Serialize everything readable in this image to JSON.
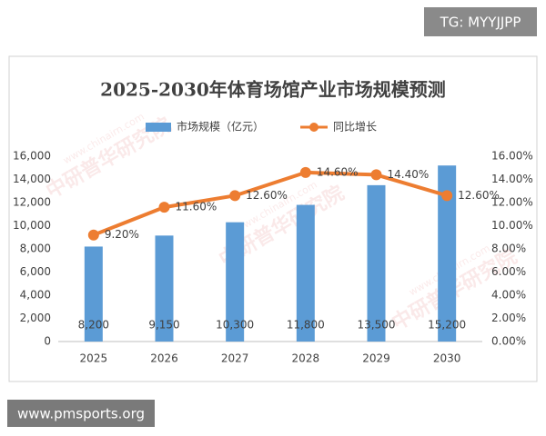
{
  "chart_data": {
    "type": "bar",
    "title": "2025-2030年体育场馆产业市场规模预测",
    "categories": [
      "2025",
      "2026",
      "2027",
      "2028",
      "2029",
      "2030"
    ],
    "series": [
      {
        "name": "市场规模（亿元）",
        "type": "bar",
        "color": "#5b9bd5",
        "values": [
          8200,
          9150,
          10300,
          11800,
          13500,
          15200
        ],
        "value_labels": [
          "8,200",
          "9,150",
          "10,300",
          "11,800",
          "13,500",
          "15,200"
        ]
      },
      {
        "name": "同比增长",
        "type": "line",
        "axis": "y2",
        "color": "#ed7d31",
        "values": [
          9.2,
          11.6,
          12.6,
          14.6,
          14.4,
          12.6
        ],
        "value_labels": [
          "9.20%",
          "11.60%",
          "12.60%",
          "14.60%",
          "14.40%",
          "12.60%"
        ]
      }
    ],
    "ylim": [
      0,
      16000
    ],
    "yticks": [
      0,
      {
        "value": 2000,
        "label": "2,000"
      },
      {
        "value": 4000,
        "label": "4,000"
      },
      {
        "value": 6000,
        "label": "6,000"
      },
      {
        "value": 8000,
        "label": "8,000"
      },
      {
        "value": 10000,
        "label": "10,000"
      },
      {
        "value": 12000,
        "label": "12,000"
      },
      {
        "value": 14000,
        "label": "14,000"
      },
      {
        "value": 16000,
        "label": "16,000"
      }
    ],
    "y2lim": [
      0,
      16
    ],
    "y2ticks": [
      {
        "value": 0,
        "label": "0.00%"
      },
      {
        "value": 2,
        "label": "2.00%"
      },
      {
        "value": 4,
        "label": "4.00%"
      },
      {
        "value": 6,
        "label": "6.00%"
      },
      {
        "value": 8,
        "label": "8.00%"
      },
      {
        "value": 10,
        "label": "10.00%"
      },
      {
        "value": 12,
        "label": "12.00%"
      },
      {
        "value": 14,
        "label": "14.00%"
      },
      {
        "value": 16,
        "label": "16.00%"
      }
    ],
    "grid": false,
    "legend": "top",
    "watermark": "中研普华研究院",
    "watermark_url": "www.chinairn.com"
  },
  "overlay": {
    "top_right": "TG: MYYJJPP",
    "bottom_left": "www.pmsports.org"
  }
}
